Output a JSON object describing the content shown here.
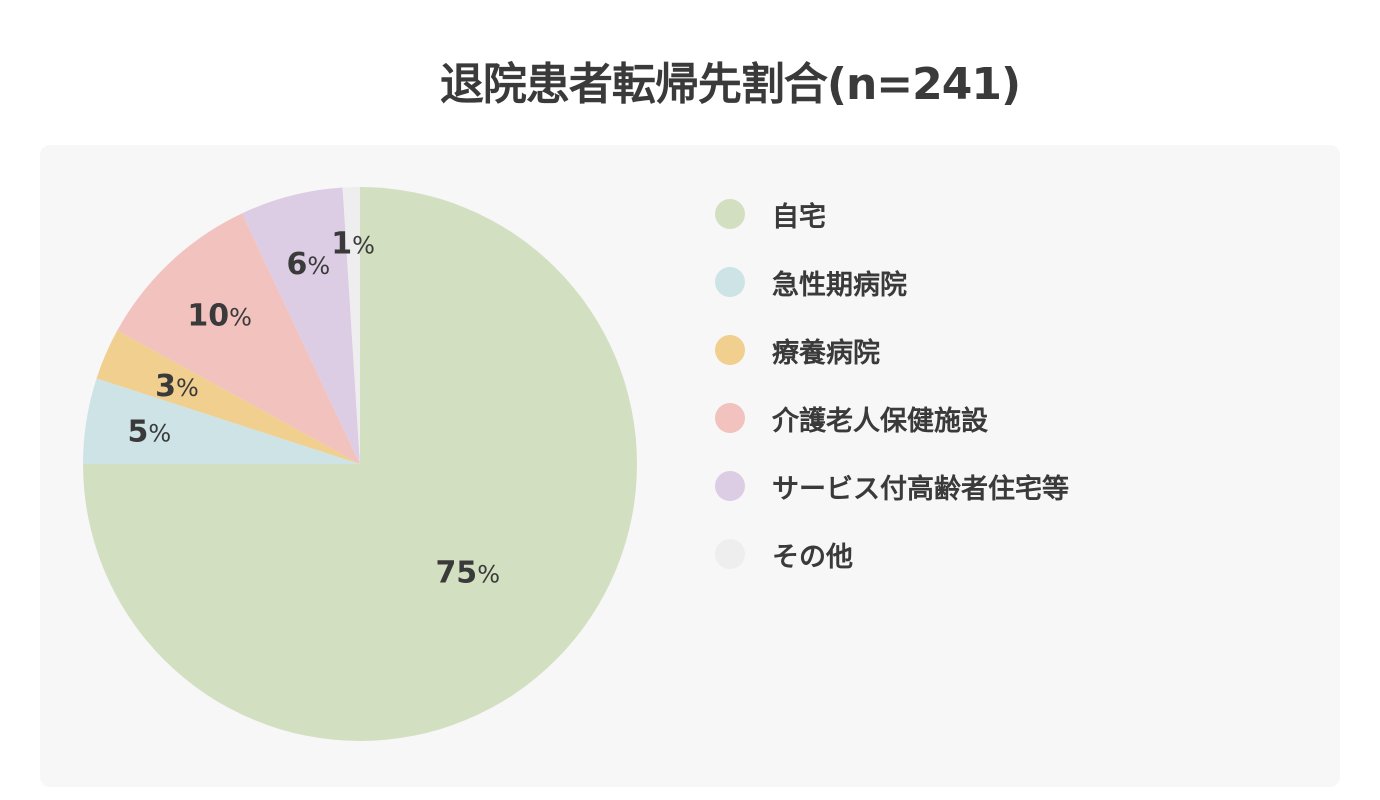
{
  "chart_data": {
    "type": "pie",
    "title": "退院患者転帰先割合(n=241)",
    "categories": [
      "自宅",
      "急性期病院",
      "療養病院",
      "介護老人保健施設",
      "サービス付高齢者住宅等",
      "その他"
    ],
    "values": [
      75,
      5,
      3,
      10,
      6,
      1
    ],
    "value_labels": [
      "75",
      "5",
      "3",
      "10",
      "6",
      "1"
    ],
    "unit": "%",
    "colors": [
      "#d3dfc1",
      "#cde3e6",
      "#f0cf8f",
      "#f2c2be",
      "#dccde5",
      "#eeeeee"
    ],
    "legend_position": "right",
    "start_angle": "12 o'clock, clockwise"
  }
}
